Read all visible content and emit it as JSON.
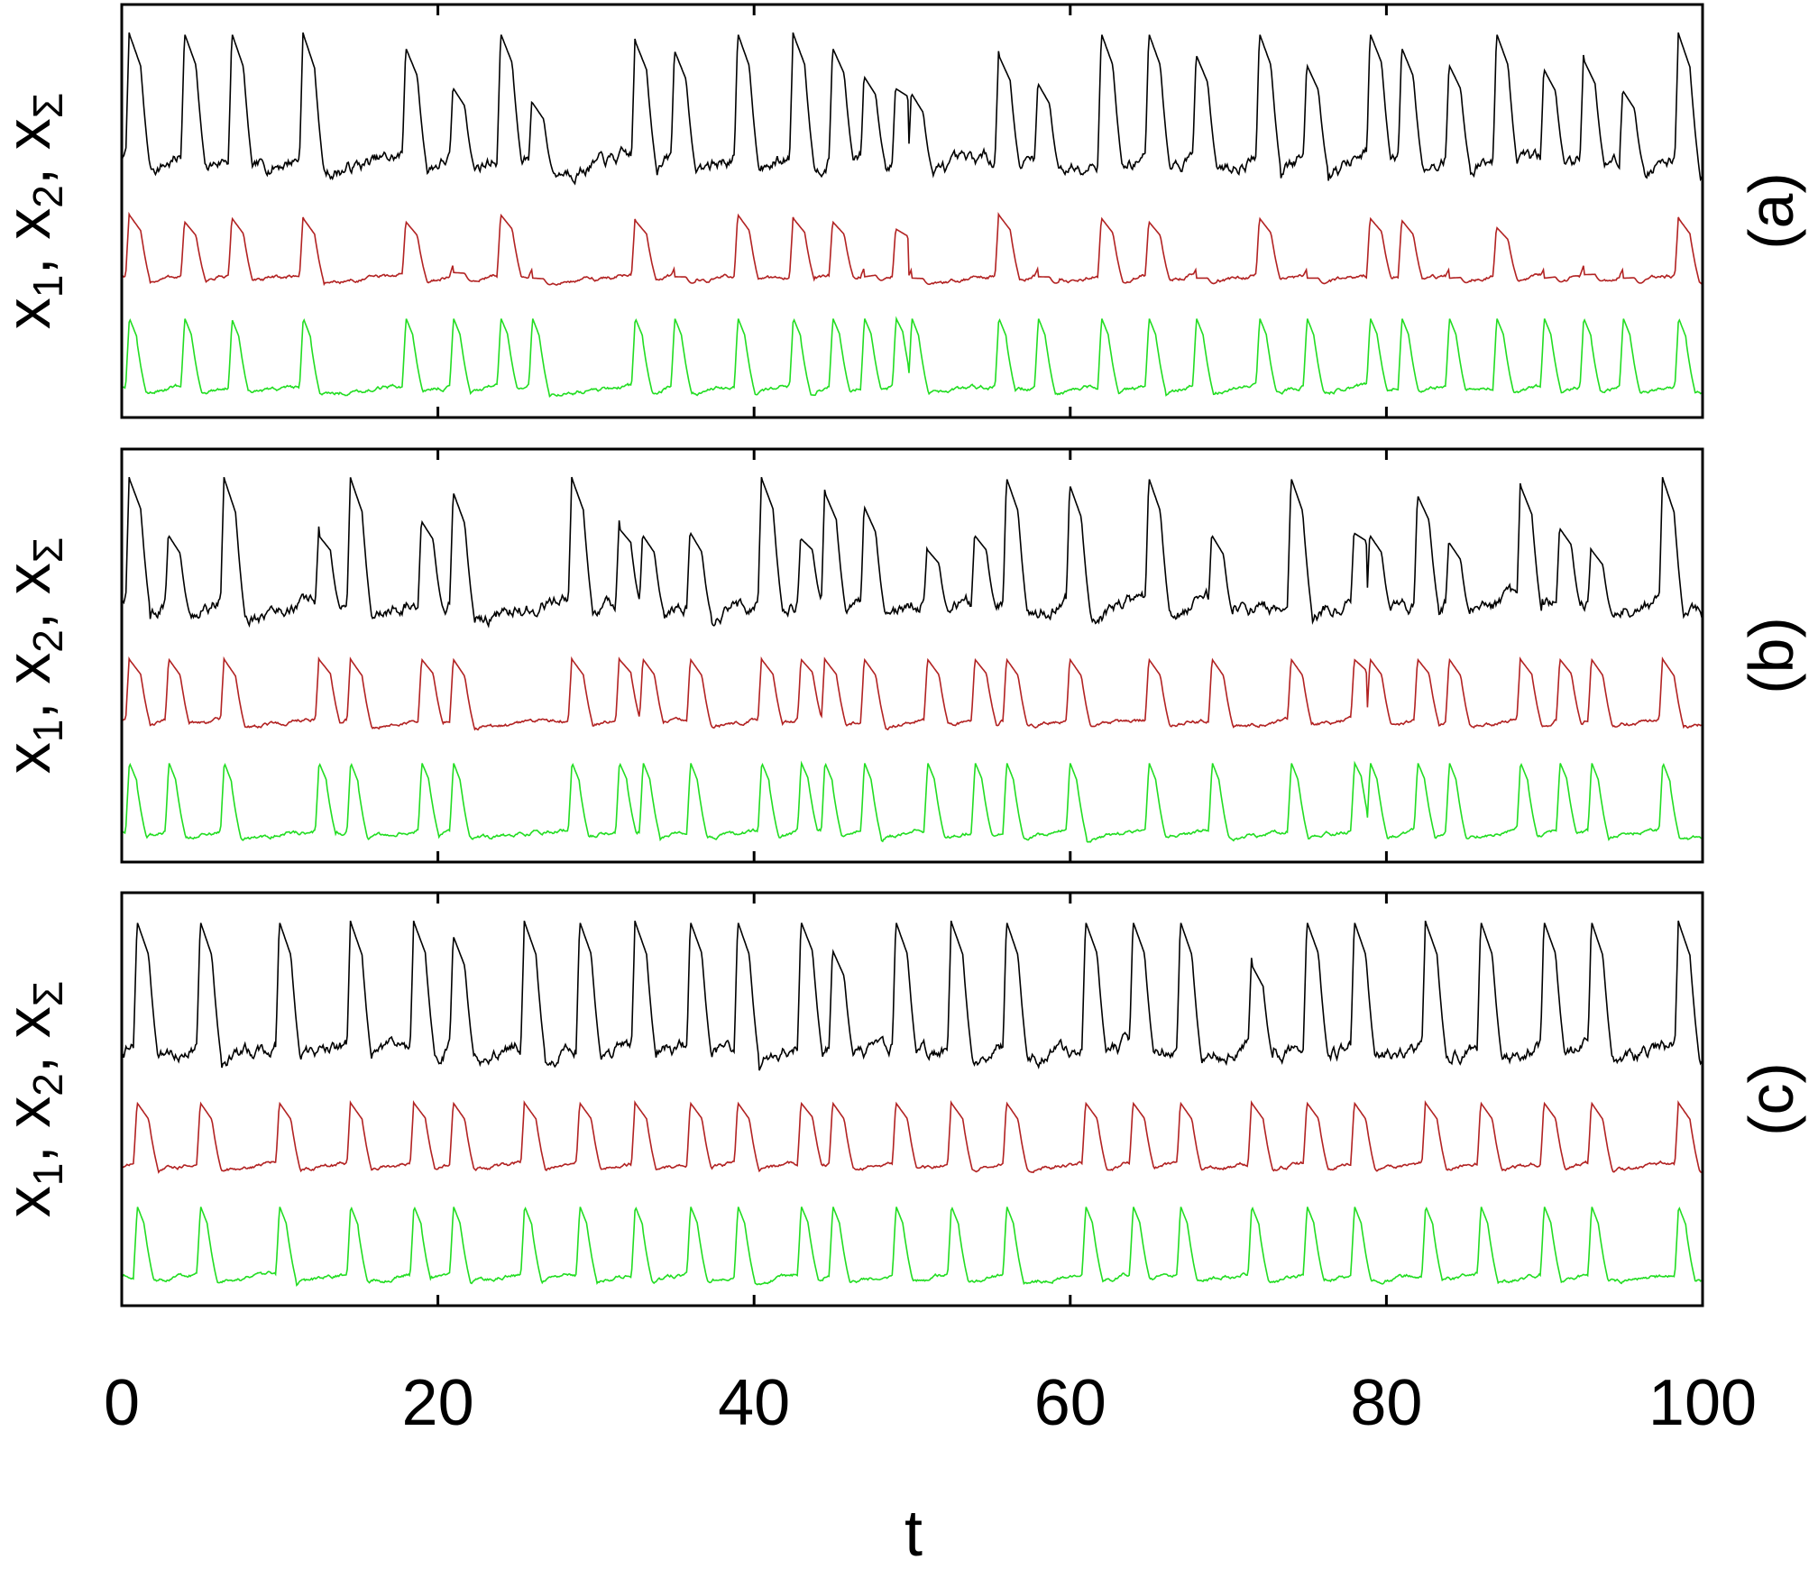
{
  "chart_data": [
    {
      "type": "line",
      "panel_label": "(a)",
      "ylabel": {
        "parts": [
          "x",
          "1",
          ", x",
          "2",
          ", x",
          "Σ"
        ]
      },
      "xlim": [
        0,
        100
      ],
      "series": [
        {
          "color": "#000000",
          "spikes": [
            0.5,
            4,
            7,
            11.5,
            18,
            21,
            24,
            26,
            32.5,
            35,
            39,
            42.5,
            45,
            47,
            49,
            50,
            55.5,
            58,
            62,
            65,
            68,
            72,
            75,
            79,
            81,
            84,
            87,
            90,
            92.5,
            95,
            98.5
          ],
          "amps": [
            1,
            1,
            1,
            1,
            0.9,
            0.62,
            1,
            0.52,
            0.95,
            0.88,
            1,
            1,
            0.9,
            0.7,
            0.62,
            0.58,
            0.85,
            0.65,
            1,
            1,
            0.85,
            1,
            0.78,
            1,
            0.9,
            0.78,
            1,
            0.75,
            0.82,
            0.6,
            1
          ]
        },
        {
          "color": "#b22222",
          "spikes": [
            0.5,
            4,
            7,
            11.5,
            18,
            21,
            24,
            26,
            32.5,
            35,
            39,
            42.5,
            45,
            47,
            49,
            50,
            55.5,
            58,
            62,
            65,
            68,
            72,
            75,
            79,
            81,
            84,
            87,
            90,
            92.5,
            95,
            98.5
          ],
          "amps": [
            1,
            0.9,
            0.95,
            0.95,
            0.9,
            0.18,
            1,
            0.1,
            0.92,
            0.12,
            1,
            0.95,
            0.9,
            0.12,
            0.8,
            0.1,
            1,
            0.12,
            0.95,
            0.9,
            0.1,
            0.95,
            0.1,
            0.95,
            0.92,
            0.1,
            0.82,
            0.1,
            0.15,
            0.1,
            0.95
          ]
        },
        {
          "color": "#22dd22",
          "spikes": [
            0.5,
            4,
            7,
            11.5,
            18,
            21,
            24,
            26,
            32.5,
            35,
            39,
            42.5,
            45,
            47,
            49,
            50,
            55.5,
            58,
            62,
            65,
            68,
            72,
            75,
            79,
            81,
            84,
            87,
            90,
            92.5,
            95,
            98.5
          ],
          "amps": [
            1,
            1,
            0.98,
            1,
            1,
            1,
            1,
            1,
            1,
            1,
            1,
            1,
            1,
            1,
            1,
            1,
            1,
            1,
            1,
            1,
            1,
            1,
            1,
            1,
            1,
            1,
            1,
            1,
            1,
            1,
            1
          ]
        }
      ]
    },
    {
      "type": "line",
      "panel_label": "(b)",
      "ylabel": {
        "parts": [
          "x",
          "1",
          ", x",
          "2",
          ", x",
          "Σ"
        ]
      },
      "xlim": [
        0,
        100
      ],
      "series": [
        {
          "color": "#000000",
          "spikes": [
            0.5,
            3,
            6.5,
            12.5,
            14.5,
            19,
            21,
            28.5,
            31.5,
            33,
            36,
            40.5,
            43,
            44.5,
            47,
            51,
            54,
            56,
            60,
            65,
            69,
            74,
            78,
            79,
            82,
            84,
            88.5,
            91,
            93,
            97.5
          ],
          "amps": [
            1,
            0.6,
            1,
            0.6,
            1,
            0.7,
            0.9,
            1,
            0.65,
            0.6,
            0.62,
            1,
            0.58,
            0.9,
            0.8,
            0.5,
            0.6,
            1,
            0.95,
            1,
            0.6,
            1,
            0.62,
            0.6,
            0.88,
            0.55,
            0.95,
            0.65,
            0.5,
            1
          ]
        },
        {
          "color": "#b22222",
          "spikes": [
            0.5,
            3,
            6.5,
            12.5,
            14.5,
            19,
            21,
            28.5,
            31.5,
            33,
            36,
            40.5,
            43,
            44.5,
            47,
            51,
            54,
            56,
            60,
            65,
            69,
            74,
            78,
            79,
            82,
            84,
            88.5,
            91,
            93,
            97.5
          ],
          "amps": [
            1,
            1,
            1,
            1,
            1,
            1,
            1,
            1,
            1,
            1,
            1,
            1,
            1,
            1,
            1,
            1,
            1,
            1,
            1,
            1,
            1,
            1,
            1,
            1,
            1,
            1,
            1,
            1,
            1,
            1
          ]
        },
        {
          "color": "#22dd22",
          "spikes": [
            0.5,
            3,
            6.5,
            12.5,
            14.5,
            19,
            21,
            28.5,
            31.5,
            33,
            36,
            40.5,
            43,
            44.5,
            47,
            51,
            54,
            56,
            60,
            65,
            69,
            74,
            78,
            79,
            82,
            84,
            88.5,
            91,
            93,
            97.5
          ],
          "amps": [
            1,
            1,
            1,
            1,
            1,
            1,
            1,
            1,
            1,
            1,
            1,
            1,
            1,
            1,
            1,
            1,
            1,
            1,
            1,
            1,
            1,
            1,
            1,
            1,
            1,
            1,
            1,
            1,
            1,
            1
          ]
        }
      ]
    },
    {
      "type": "line",
      "panel_label": "(c)",
      "ylabel": {
        "parts": [
          "x",
          "1",
          ", x",
          "2",
          ", x",
          "Σ"
        ]
      },
      "xlim": [
        0,
        100
      ],
      "series": [
        {
          "color": "#000000",
          "spikes": [
            1,
            5,
            10,
            14.5,
            18.5,
            21,
            25.5,
            29,
            32.5,
            36,
            39,
            43,
            45,
            49,
            52.5,
            56,
            61,
            64,
            67,
            71.5,
            75,
            78,
            82.5,
            86,
            90,
            93,
            98.5
          ],
          "amps": [
            1,
            1,
            1,
            1,
            1,
            0.9,
            1,
            1,
            1,
            1,
            1,
            1,
            0.8,
            1,
            1,
            1,
            1,
            1,
            1,
            0.7,
            1,
            1,
            1,
            1,
            1,
            1,
            1
          ]
        },
        {
          "color": "#b22222",
          "spikes": [
            1,
            5,
            10,
            14.5,
            18.5,
            21,
            25.5,
            29,
            32.5,
            36,
            39,
            43,
            45,
            49,
            52.5,
            56,
            61,
            64,
            67,
            71.5,
            75,
            78,
            82.5,
            86,
            90,
            93,
            98.5
          ],
          "amps": [
            1,
            1,
            1,
            1,
            1,
            1,
            1,
            1,
            1,
            1,
            1,
            1,
            1,
            1,
            1,
            1,
            1,
            1,
            1,
            1,
            1,
            1,
            1,
            1,
            1,
            1,
            1
          ]
        },
        {
          "color": "#22dd22",
          "spikes": [
            1,
            5,
            10,
            14.5,
            18.5,
            21,
            25.5,
            29,
            32.5,
            36,
            39,
            43,
            45,
            49,
            52.5,
            56,
            61,
            64,
            67,
            71.5,
            75,
            78,
            82.5,
            86,
            90,
            93,
            98.5
          ],
          "amps": [
            1,
            1,
            1,
            1,
            1,
            1,
            1,
            1,
            1,
            1,
            1,
            1,
            1,
            1,
            1,
            1,
            1,
            1,
            1,
            1,
            1,
            1,
            1,
            1,
            1,
            1,
            1
          ]
        }
      ]
    }
  ],
  "x_axis": {
    "label": "t",
    "ticks": [
      0,
      20,
      40,
      60,
      80,
      100
    ],
    "tick_labels": [
      "0",
      "20",
      "40",
      "60",
      "80",
      "100"
    ]
  }
}
